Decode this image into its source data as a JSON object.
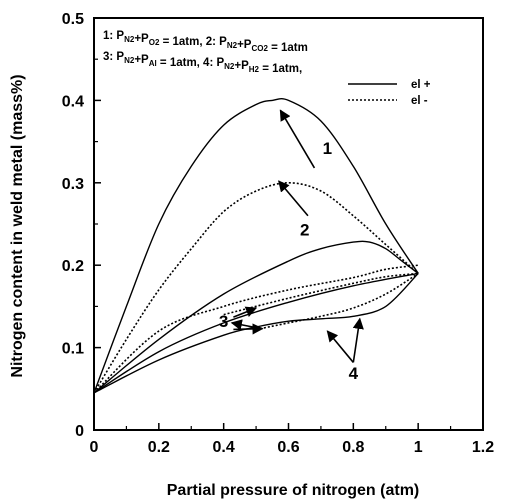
{
  "chart_data": {
    "type": "line",
    "xlabel": "Partial pressure of nitrogen (atm)",
    "ylabel": "Nitrogen content in weld metal (mass%)",
    "xlim": [
      0,
      1.2
    ],
    "ylim": [
      0,
      0.5
    ],
    "x_ticks": [
      "0",
      "0.2",
      "0.4",
      "0.6",
      "0.8",
      "1",
      "1.2"
    ],
    "y_ticks": [
      "0",
      "0.1",
      "0.2",
      "0.3",
      "0.4",
      "0.5"
    ],
    "grid": false,
    "legend_position": "top-right",
    "legend": [
      {
        "label": "el +",
        "style": "solid"
      },
      {
        "label": "el -",
        "style": "dotted"
      }
    ],
    "annotations": {
      "line1": [
        {
          "t": "1: P",
          "sub": "N2"
        },
        {
          "t": "+P",
          "sub": "O2"
        },
        {
          "t": " = 1atm, 2: P",
          "sub": "N2"
        },
        {
          "t": "+P",
          "sub": "CO2"
        },
        {
          "t": " = 1atm",
          "sub": ""
        }
      ],
      "line2": [
        {
          "t": "3: P",
          "sub": "N2"
        },
        {
          "t": "+P",
          "sub": "Al"
        },
        {
          "t": " = 1atm, 4: P",
          "sub": "N2"
        },
        {
          "t": "+P",
          "sub": "H2"
        },
        {
          "t": " = 1atm,",
          "sub": ""
        }
      ]
    },
    "region_labels": [
      "1",
      "2",
      "3",
      "4"
    ],
    "series": [
      {
        "label": "1",
        "style": "solid",
        "x": [
          0,
          0.1,
          0.2,
          0.3,
          0.4,
          0.5,
          0.55,
          0.6,
          0.7,
          0.8,
          0.9,
          1.0
        ],
        "y": [
          0.045,
          0.15,
          0.25,
          0.32,
          0.37,
          0.395,
          0.4,
          0.4,
          0.375,
          0.32,
          0.25,
          0.19
        ]
      },
      {
        "label": "1",
        "style": "dotted",
        "x": [
          0,
          0.1,
          0.2,
          0.3,
          0.4,
          0.5,
          0.6,
          0.7,
          0.8,
          0.9,
          1.0
        ],
        "y": [
          0.045,
          0.11,
          0.17,
          0.22,
          0.265,
          0.29,
          0.3,
          0.29,
          0.26,
          0.225,
          0.19
        ]
      },
      {
        "label": "2",
        "style": "solid",
        "x": [
          0,
          0.2,
          0.4,
          0.6,
          0.7,
          0.8,
          0.85,
          0.9,
          0.95,
          1.0
        ],
        "y": [
          0.045,
          0.11,
          0.165,
          0.205,
          0.22,
          0.228,
          0.228,
          0.22,
          0.205,
          0.19
        ]
      },
      {
        "label": "2",
        "style": "dotted",
        "x": [
          0,
          0.2,
          0.4,
          0.6,
          0.8,
          0.9,
          1.0
        ],
        "y": [
          0.045,
          0.12,
          0.15,
          0.17,
          0.185,
          0.195,
          0.2
        ]
      },
      {
        "label": "3",
        "style": "solid",
        "x": [
          0,
          0.2,
          0.4,
          0.6,
          0.8,
          1.0
        ],
        "y": [
          0.045,
          0.095,
          0.13,
          0.155,
          0.175,
          0.19
        ]
      },
      {
        "label": "3",
        "style": "dotted",
        "x": [
          0.4,
          0.6,
          0.8,
          0.9,
          1.0
        ],
        "y": [
          0.14,
          0.16,
          0.178,
          0.186,
          0.19
        ]
      },
      {
        "label": "4",
        "style": "solid",
        "x": [
          0,
          0.2,
          0.4,
          0.5,
          0.6,
          0.7,
          0.8,
          0.9,
          1.0
        ],
        "y": [
          0.045,
          0.085,
          0.115,
          0.125,
          0.132,
          0.135,
          0.138,
          0.15,
          0.19
        ]
      },
      {
        "label": "4",
        "style": "dotted",
        "x": [
          0.5,
          0.6,
          0.7,
          0.8,
          0.9,
          1.0
        ],
        "y": [
          0.122,
          0.13,
          0.138,
          0.148,
          0.165,
          0.19
        ]
      }
    ]
  }
}
